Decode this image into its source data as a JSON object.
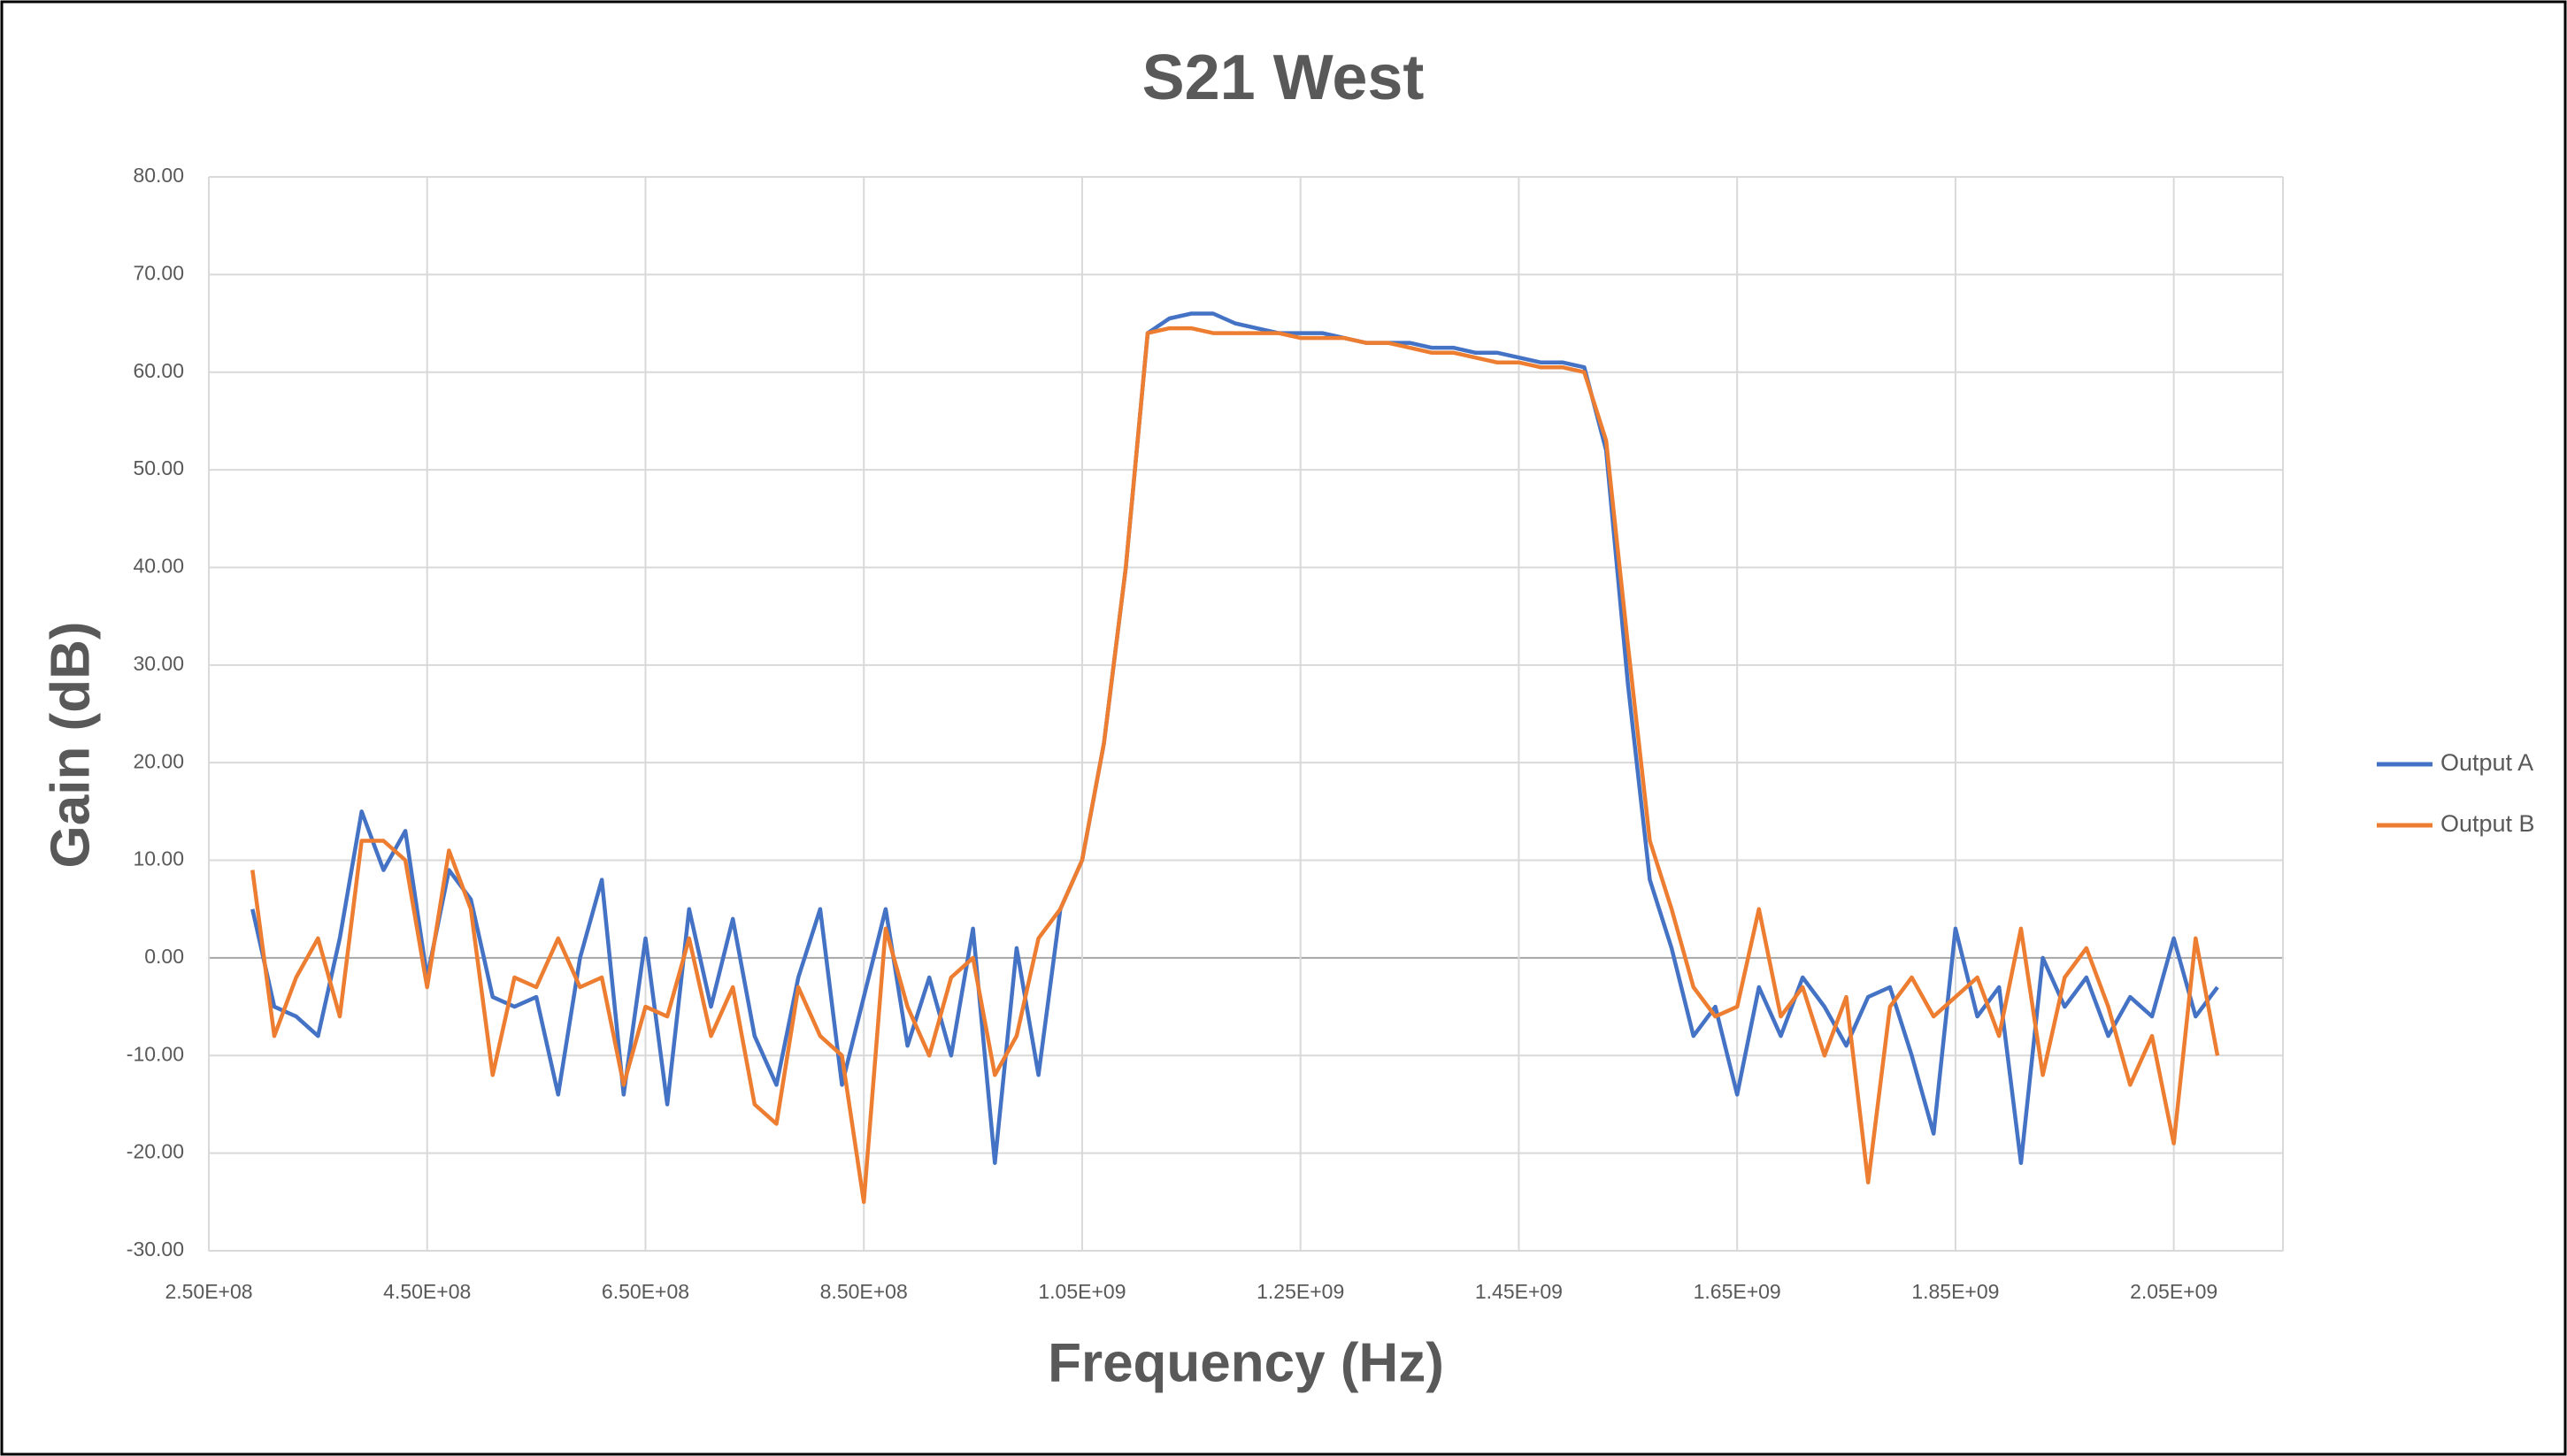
{
  "chart_data": {
    "type": "line",
    "title": "S21 West",
    "x_label": "Frequency (Hz)",
    "y_label": "Gain (dB)",
    "x": [
      290000000,
      310000000,
      330000000,
      350000000,
      370000000,
      390000000,
      410000000,
      430000000,
      450000000,
      470000000,
      490000000,
      510000000,
      530000000,
      550000000,
      570000000,
      590000000,
      610000000,
      630000000,
      650000000,
      670000000,
      690000000,
      710000000,
      730000000,
      750000000,
      770000000,
      790000000,
      810000000,
      830000000,
      850000000,
      870000000,
      890000000,
      910000000,
      930000000,
      950000000,
      970000000,
      990000000,
      1010000000,
      1030000000,
      1050000000,
      1070000000,
      1090000000,
      1110000000,
      1130000000,
      1150000000,
      1170000000,
      1190000000,
      1210000000,
      1230000000,
      1250000000,
      1270000000,
      1290000000,
      1310000000,
      1330000000,
      1350000000,
      1370000000,
      1390000000,
      1410000000,
      1430000000,
      1450000000,
      1470000000,
      1490000000,
      1510000000,
      1530000000,
      1550000000,
      1570000000,
      1590000000,
      1610000000,
      1630000000,
      1650000000,
      1670000000,
      1690000000,
      1710000000,
      1730000000,
      1750000000,
      1770000000,
      1790000000,
      1810000000,
      1830000000,
      1850000000,
      1870000000,
      1890000000,
      1910000000,
      1930000000,
      1950000000,
      1970000000,
      1990000000,
      2010000000,
      2030000000,
      2050000000,
      2070000000,
      2090000000
    ],
    "series": [
      {
        "name": "Output A",
        "color": "#4472c4",
        "values": [
          5,
          -5,
          -6,
          -8,
          2,
          15,
          9,
          13,
          -2,
          9,
          6,
          -4,
          -5,
          -4,
          -14,
          0,
          8,
          -14,
          2,
          -15,
          5,
          -5,
          4,
          -8,
          -13,
          -2,
          5,
          -13,
          -4,
          5,
          -9,
          -2,
          -10,
          3,
          -21,
          1,
          -12,
          5,
          10,
          22,
          40,
          64,
          65.5,
          66,
          66,
          65,
          64.5,
          64,
          64,
          64,
          63.5,
          63,
          63,
          63,
          62.5,
          62.5,
          62,
          62,
          61.5,
          61,
          61,
          60.5,
          52,
          28,
          8,
          1,
          -8,
          -5,
          -14,
          -3,
          -8,
          -2,
          -5,
          -9,
          -4,
          -3,
          -10,
          -18,
          3,
          -6,
          -3,
          -21,
          0,
          -5,
          -2,
          -8,
          -4,
          -6,
          2,
          -6,
          -3
        ]
      },
      {
        "name": "Output B",
        "color": "#ed7d31",
        "values": [
          9,
          -8,
          -2,
          2,
          -6,
          12,
          12,
          10,
          -3,
          11,
          5,
          -12,
          -2,
          -3,
          2,
          -3,
          -2,
          -13,
          -5,
          -6,
          2,
          -8,
          -3,
          -15,
          -17,
          -3,
          -8,
          -10,
          -25,
          3,
          -5,
          -10,
          -2,
          0,
          -12,
          -8,
          2,
          5,
          10,
          22,
          40,
          64,
          64.5,
          64.5,
          64,
          64,
          64,
          64,
          63.5,
          63.5,
          63.5,
          63,
          63,
          62.5,
          62,
          62,
          61.5,
          61,
          61,
          60.5,
          60.5,
          60,
          53,
          32,
          12,
          5,
          -3,
          -6,
          -5,
          5,
          -6,
          -3,
          -10,
          -4,
          -23,
          -5,
          -2,
          -6,
          -4,
          -2,
          -8,
          3,
          -12,
          -2,
          1,
          -5,
          -13,
          -8,
          -19,
          2,
          -10
        ]
      }
    ],
    "xlim": [
      250000000,
      2150000000
    ],
    "xticks": [
      {
        "value": 250000000,
        "label": "2.50E+08"
      },
      {
        "value": 450000000,
        "label": "4.50E+08"
      },
      {
        "value": 650000000,
        "label": "6.50E+08"
      },
      {
        "value": 850000000,
        "label": "8.50E+08"
      },
      {
        "value": 1050000000,
        "label": "1.05E+09"
      },
      {
        "value": 1250000000,
        "label": "1.25E+09"
      },
      {
        "value": 1450000000,
        "label": "1.45E+09"
      },
      {
        "value": 1650000000,
        "label": "1.65E+09"
      },
      {
        "value": 1850000000,
        "label": "1.85E+09"
      },
      {
        "value": 2050000000,
        "label": "2.05E+09"
      }
    ],
    "ylim": [
      -30,
      80
    ],
    "yticks": [
      {
        "value": 80,
        "label": "80.00"
      },
      {
        "value": 70,
        "label": "70.00"
      },
      {
        "value": 60,
        "label": "60.00"
      },
      {
        "value": 50,
        "label": "50.00"
      },
      {
        "value": 40,
        "label": "40.00"
      },
      {
        "value": 30,
        "label": "30.00"
      },
      {
        "value": 20,
        "label": "20.00"
      },
      {
        "value": 10,
        "label": "10.00"
      },
      {
        "value": 0,
        "label": "0.00"
      },
      {
        "value": -10,
        "label": "-10.00"
      },
      {
        "value": -20,
        "label": "-20.00"
      },
      {
        "value": -30,
        "label": "-30.00"
      }
    ],
    "grid": true,
    "legend": "right"
  }
}
